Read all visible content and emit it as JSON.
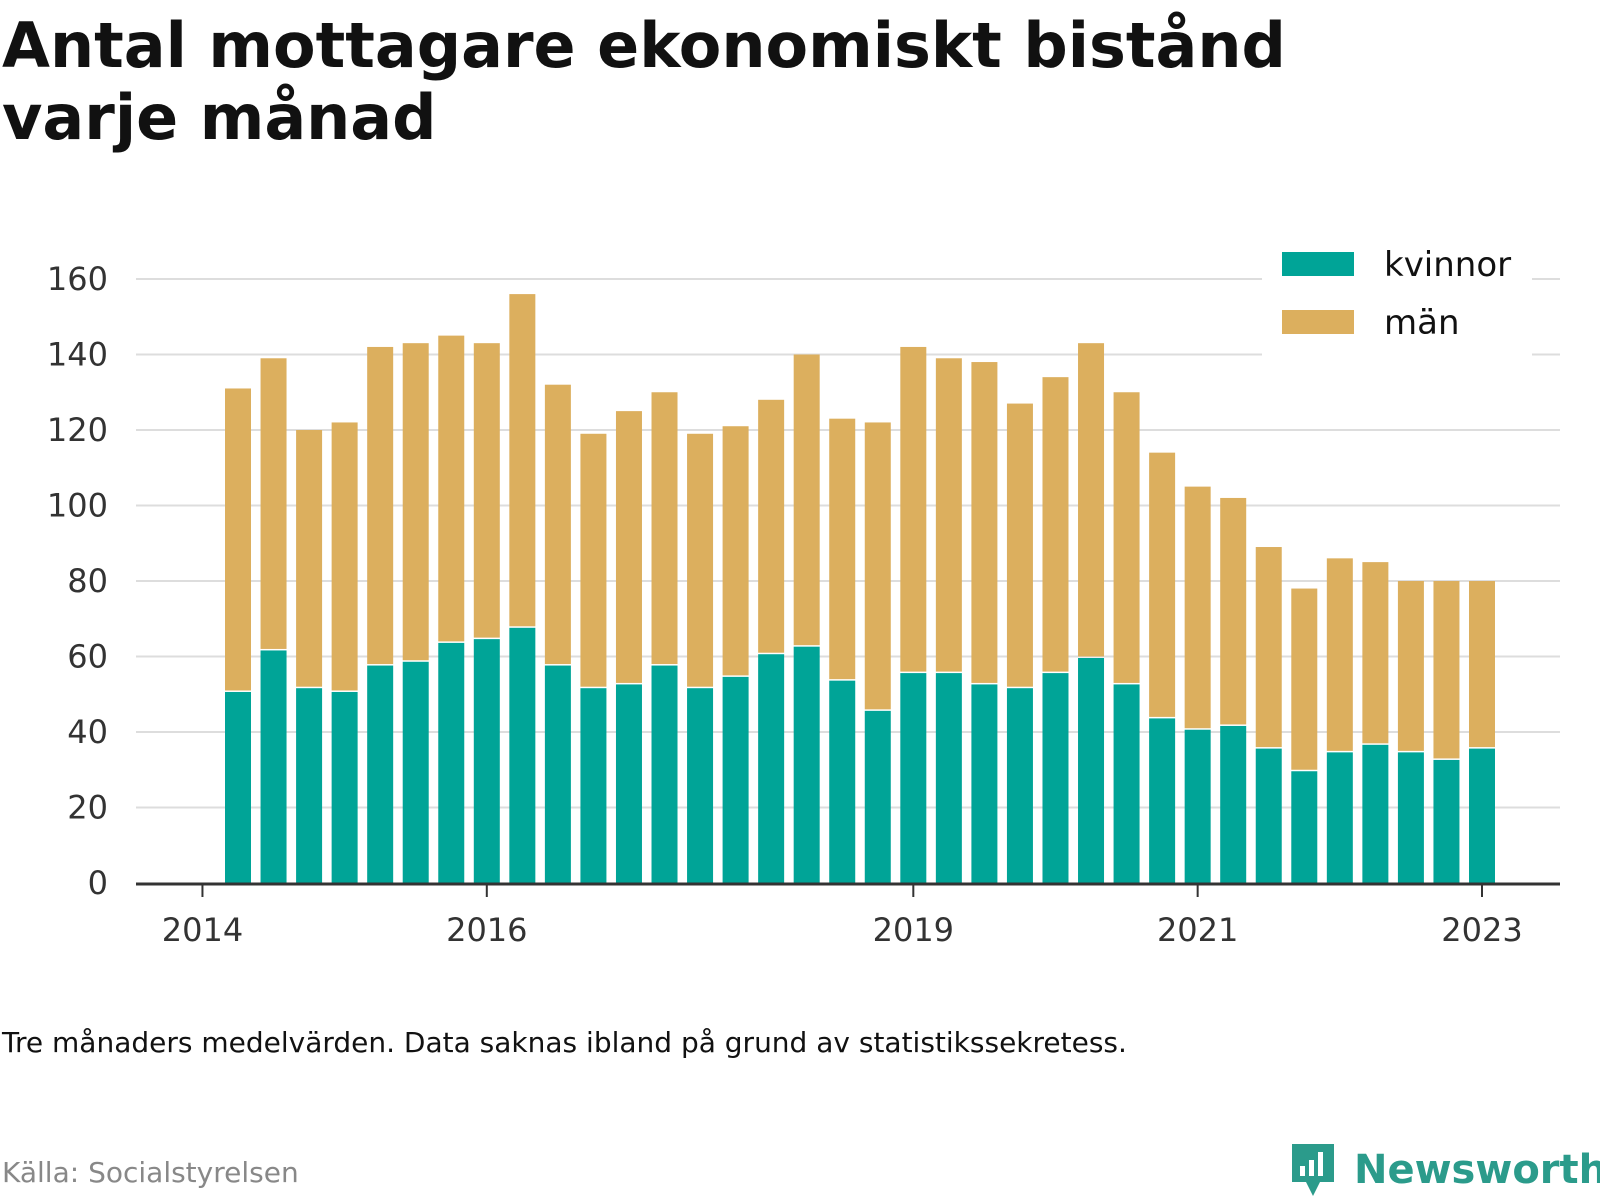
{
  "title": "Antal mottagare ekonomiskt bistånd varje månad",
  "note": "Tre månaders medelvärden. Data saknas ibland på grund av statistikssekretess.",
  "source": "Källa: Socialstyrelsen",
  "brand": {
    "name": "Newsworthy",
    "icon": "newsworthy-logo-icon",
    "color": "#2b9b8b"
  },
  "colors": {
    "kvinnor": "#00a497",
    "man": "#dcaf5e",
    "grid": "#dddddd",
    "axis": "#333333"
  },
  "chart_data": {
    "type": "bar",
    "stacked": true,
    "x_labels": [
      "2014",
      "2016",
      "2019",
      "2021",
      "2023"
    ],
    "ylim": [
      0,
      160
    ],
    "yticks": [
      0,
      20,
      40,
      60,
      80,
      100,
      120,
      140,
      160
    ],
    "grid": true,
    "legend_position": "top-right",
    "series": [
      {
        "name": "kvinnor",
        "values": [
          51,
          62,
          52,
          51,
          58,
          59,
          64,
          65,
          68,
          58,
          52,
          53,
          58,
          52,
          55,
          61,
          63,
          54,
          46,
          56,
          56,
          53,
          52,
          56,
          60,
          53,
          44,
          41,
          42,
          36,
          30,
          35,
          37,
          35,
          33,
          36
        ]
      },
      {
        "name": "män",
        "values": [
          80,
          77,
          68,
          71,
          84,
          84,
          81,
          78,
          88,
          74,
          67,
          72,
          72,
          67,
          66,
          67,
          77,
          69,
          76,
          86,
          83,
          85,
          75,
          78,
          83,
          77,
          70,
          64,
          60,
          53,
          48,
          51,
          48,
          45,
          47,
          44
        ]
      }
    ]
  }
}
